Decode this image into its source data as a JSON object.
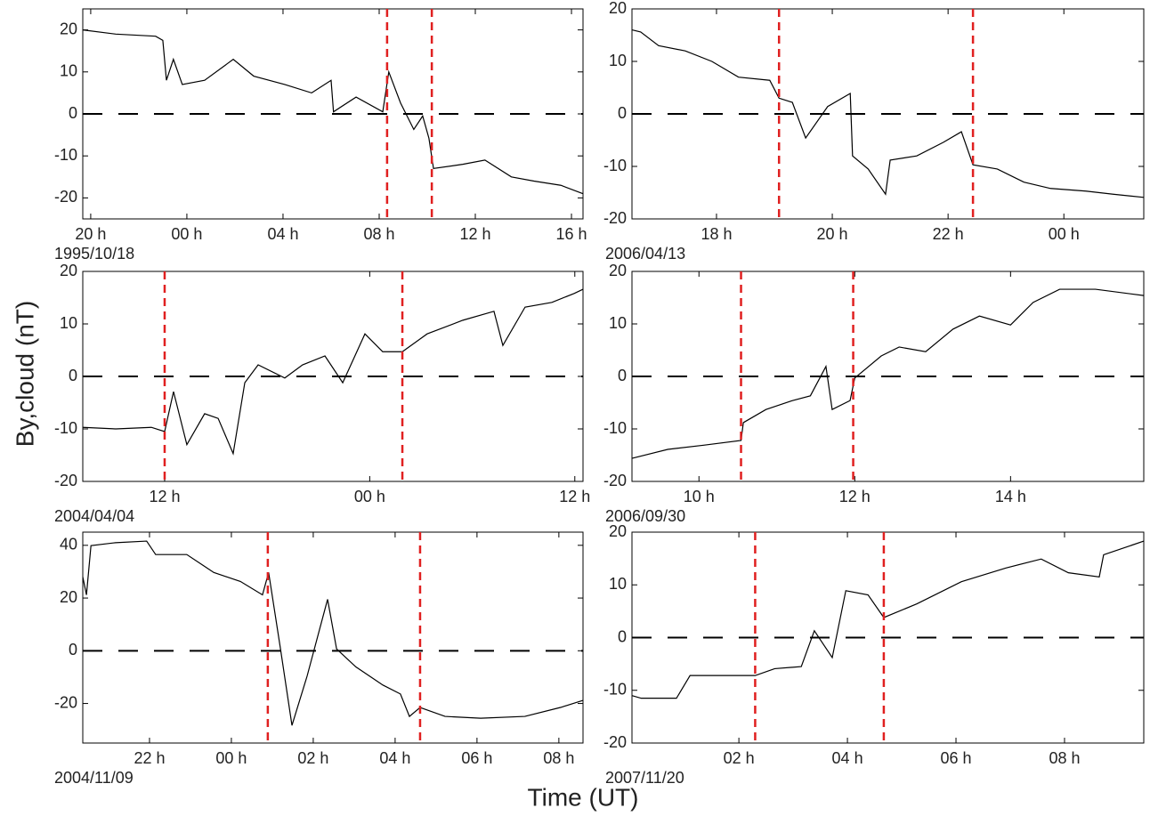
{
  "ylabel": "By,cloud (nT)",
  "xlabel": "Time (UT)",
  "chart_data": [
    {
      "type": "line",
      "date": "1995/10/18",
      "xlim": [
        19.67,
        40.48
      ],
      "ylim": [
        -25,
        25
      ],
      "xticks": [
        {
          "value": 20,
          "label": "20 h"
        },
        {
          "value": 24,
          "label": "00 h"
        },
        {
          "value": 28,
          "label": "04 h"
        },
        {
          "value": 32,
          "label": "08 h"
        },
        {
          "value": 36,
          "label": "12 h"
        },
        {
          "value": 40,
          "label": "16 h"
        }
      ],
      "yticks": [
        -20,
        -10,
        0,
        10,
        20
      ],
      "hline": 0,
      "vlines": [
        32.33,
        34.19
      ],
      "vline_color": "#e02020",
      "x": [
        19.67,
        21.04,
        22.7,
        23.0,
        23.15,
        23.44,
        23.81,
        24.74,
        25.93,
        26.78,
        28.07,
        29.19,
        30.0,
        30.1,
        31.04,
        32.15,
        32.4,
        32.89,
        33.44,
        33.81,
        34.07,
        34.26,
        35.48,
        36.4,
        37.5,
        38.44,
        39.56,
        40.48
      ],
      "series": [
        {
          "color": "#000000",
          "values": [
            20,
            19,
            18.5,
            17.5,
            8,
            13,
            7,
            8,
            13,
            9,
            7,
            5,
            8,
            0.5,
            4,
            0.5,
            10,
            2.6,
            -3.7,
            -0.5,
            -5.8,
            -13,
            -12,
            -11,
            -15,
            -16,
            -17,
            -19
          ]
        }
      ]
    },
    {
      "type": "line",
      "date": "2006/04/13",
      "xlim": [
        16.54,
        25.38
      ],
      "ylim": [
        -20,
        20
      ],
      "xticks": [
        {
          "value": 18,
          "label": "18 h"
        },
        {
          "value": 20,
          "label": "20 h"
        },
        {
          "value": 22,
          "label": "22 h"
        },
        {
          "value": 24,
          "label": "00 h"
        }
      ],
      "yticks": [
        -20,
        -10,
        0,
        10,
        20
      ],
      "hline": 0,
      "vlines": [
        19.08,
        22.43
      ],
      "vline_color": "#e02020",
      "x": [
        16.54,
        16.69,
        17.0,
        17.46,
        17.92,
        18.38,
        18.92,
        19.08,
        19.31,
        19.54,
        19.92,
        20.31,
        20.35,
        20.62,
        20.92,
        21.0,
        21.46,
        21.92,
        22.23,
        22.43,
        22.85,
        23.31,
        23.77,
        24.38,
        24.85,
        25.38
      ],
      "series": [
        {
          "color": "#000000",
          "values": [
            16,
            15.6,
            13,
            12,
            10,
            7,
            6.4,
            3,
            2.2,
            -4.6,
            1.4,
            3.9,
            -8,
            -10.5,
            -15.3,
            -8.8,
            -8,
            -5.4,
            -3.4,
            -9.7,
            -10.5,
            -13,
            -14.2,
            -14.7,
            -15.3,
            -15.9
          ]
        }
      ]
    },
    {
      "type": "line",
      "date": "2004/04/04",
      "xlim": [
        7.21,
        36.48
      ],
      "ylim": [
        -20,
        20
      ],
      "xticks": [
        {
          "value": 12,
          "label": "12 h"
        },
        {
          "value": 24,
          "label": "00 h"
        },
        {
          "value": 36,
          "label": "12 h"
        }
      ],
      "yticks": [
        -20,
        -10,
        0,
        10,
        20
      ],
      "hline": 0,
      "vlines": [
        12.0,
        25.91
      ],
      "vline_color": "#e02020",
      "x": [
        7.21,
        9.14,
        11.22,
        12.0,
        12.52,
        13.3,
        14.34,
        15.13,
        16.01,
        16.69,
        17.47,
        19.03,
        20.07,
        21.38,
        22.42,
        23.72,
        24.76,
        25.91,
        27.36,
        29.45,
        31.27,
        31.79,
        33.09,
        34.66,
        35.96,
        36.48
      ],
      "series": [
        {
          "color": "#000000",
          "values": [
            -9.7,
            -10,
            -9.7,
            -10.5,
            -2.9,
            -13,
            -7.1,
            -8,
            -14.7,
            -1.2,
            2.2,
            -0.3,
            2.2,
            3.9,
            -1.2,
            8.1,
            4.7,
            4.7,
            8.1,
            10.7,
            12.4,
            5.9,
            13.2,
            14.1,
            15.8,
            16.6
          ]
        }
      ]
    },
    {
      "type": "line",
      "date": "2006/09/30",
      "xlim": [
        9.14,
        15.71
      ],
      "ylim": [
        -20,
        20
      ],
      "xticks": [
        {
          "value": 10,
          "label": "10 h"
        },
        {
          "value": 12,
          "label": "12 h"
        },
        {
          "value": 14,
          "label": "14 h"
        }
      ],
      "yticks": [
        -20,
        -10,
        0,
        10,
        20
      ],
      "hline": 0,
      "vlines": [
        10.54,
        11.98
      ],
      "vline_color": "#e02020",
      "x": [
        9.14,
        9.6,
        10.06,
        10.54,
        10.57,
        10.86,
        11.2,
        11.43,
        11.63,
        11.71,
        11.94,
        12.0,
        12.34,
        12.57,
        12.91,
        13.26,
        13.6,
        14.0,
        14.29,
        14.63,
        15.09,
        15.71
      ],
      "series": [
        {
          "color": "#000000",
          "values": [
            -15.6,
            -13.9,
            -13.1,
            -12.2,
            -8.8,
            -6.3,
            -4.6,
            -3.7,
            1.9,
            -6.3,
            -4.6,
            -0.3,
            3.9,
            5.6,
            4.7,
            9,
            11.5,
            9.8,
            14.1,
            16.6,
            16.6,
            15.4
          ]
        }
      ]
    },
    {
      "type": "line",
      "date": "2004/11/09",
      "xlim": [
        20.37,
        32.59
      ],
      "ylim": [
        -35,
        45
      ],
      "xticks": [
        {
          "value": 22,
          "label": "22 h"
        },
        {
          "value": 24,
          "label": "00 h"
        },
        {
          "value": 26,
          "label": "02 h"
        },
        {
          "value": 28,
          "label": "04 h"
        },
        {
          "value": 30,
          "label": "06 h"
        },
        {
          "value": 32,
          "label": "08 h"
        }
      ],
      "yticks": [
        -20,
        0,
        20,
        40
      ],
      "hline": 0,
      "vlines": [
        24.89,
        28.61
      ],
      "vline_color": "#e02020",
      "x": [
        20.37,
        20.46,
        20.57,
        21.17,
        21.93,
        22.15,
        22.91,
        23.57,
        24.22,
        24.76,
        24.91,
        25.2,
        25.48,
        25.85,
        26.35,
        26.57,
        27.04,
        27.7,
        28.13,
        28.35,
        28.61,
        29.22,
        30.09,
        31.17,
        32.04,
        32.59
      ],
      "series": [
        {
          "color": "#000000",
          "values": [
            28,
            21.2,
            39.9,
            41,
            41.6,
            36.5,
            36.5,
            29.7,
            26.3,
            21.2,
            29.7,
            0.7,
            -28.3,
            -9.6,
            19.5,
            0.7,
            -6.1,
            -13,
            -16.4,
            -24.9,
            -21.5,
            -24.9,
            -25.6,
            -24.9,
            -21.5,
            -18.8
          ]
        }
      ]
    },
    {
      "type": "line",
      "date": "2007/11/20",
      "xlim": [
        0.03,
        9.46
      ],
      "ylim": [
        -20,
        20
      ],
      "xticks": [
        {
          "value": 2,
          "label": "02 h"
        },
        {
          "value": 4,
          "label": "04 h"
        },
        {
          "value": 6,
          "label": "06 h"
        },
        {
          "value": 8,
          "label": "08 h"
        }
      ],
      "yticks": [
        -20,
        -10,
        0,
        10,
        20
      ],
      "hline": 0,
      "vlines": [
        2.3,
        4.67
      ],
      "vline_color": "#e02020",
      "x": [
        0.03,
        0.2,
        0.85,
        1.1,
        1.67,
        2.3,
        2.66,
        3.15,
        3.39,
        3.72,
        3.97,
        4.38,
        4.67,
        5.28,
        6.1,
        6.92,
        7.57,
        8.07,
        8.64,
        8.72,
        9.46
      ],
      "series": [
        {
          "color": "#000000",
          "values": [
            -11,
            -11.5,
            -11.5,
            -7.2,
            -7.2,
            -7.2,
            -5.9,
            -5.5,
            1.3,
            -3.8,
            8.9,
            8.1,
            3.8,
            6.4,
            10.6,
            13.2,
            14.9,
            12.3,
            11.5,
            15.7,
            18.3
          ]
        }
      ]
    }
  ]
}
